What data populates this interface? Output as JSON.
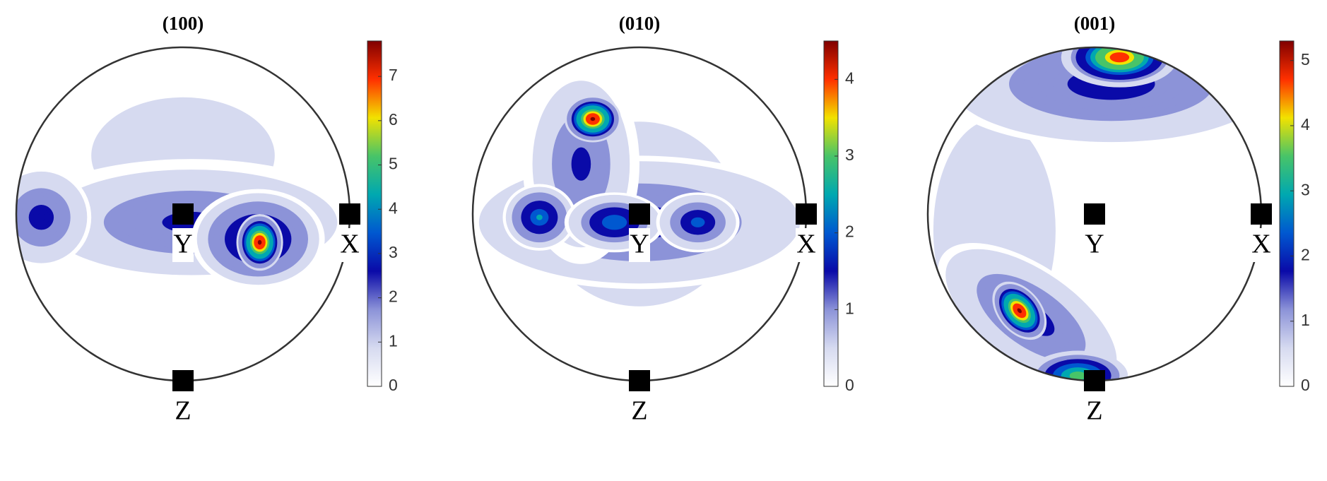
{
  "chart_data": [
    {
      "type": "pole-figure",
      "title": "(100)",
      "labels": [
        "X",
        "Y",
        "Z"
      ],
      "colormap": [
        "#ffffff",
        "#d6daf0",
        "#8c93d8",
        "#0a0aa8",
        "#0058d0",
        "#00a8b0",
        "#48c468",
        "#f2e200",
        "#ff3000",
        "#800000"
      ],
      "ylim": [
        0,
        7.8
      ],
      "yticks": [
        0,
        1,
        2,
        3,
        4,
        5,
        6,
        7
      ]
    },
    {
      "type": "pole-figure",
      "title": "(010)",
      "labels": [
        "X",
        "Y",
        "Z"
      ],
      "colormap": [
        "#ffffff",
        "#d6daf0",
        "#8c93d8",
        "#0a0aa8",
        "#0058d0",
        "#00a8b0",
        "#48c468",
        "#f2e200",
        "#ff3000",
        "#800000"
      ],
      "ylim": [
        0,
        4.5
      ],
      "yticks": [
        0,
        1,
        2,
        3,
        4
      ]
    },
    {
      "type": "pole-figure",
      "title": "(001)",
      "labels": [
        "X",
        "Y",
        "Z"
      ],
      "colormap": [
        "#ffffff",
        "#d6daf0",
        "#8c93d8",
        "#0a0aa8",
        "#0058d0",
        "#00a8b0",
        "#48c468",
        "#f2e200",
        "#ff3000",
        "#800000"
      ],
      "ylim": [
        0,
        5.3
      ],
      "yticks": [
        0,
        1,
        2,
        3,
        4,
        5
      ]
    }
  ]
}
